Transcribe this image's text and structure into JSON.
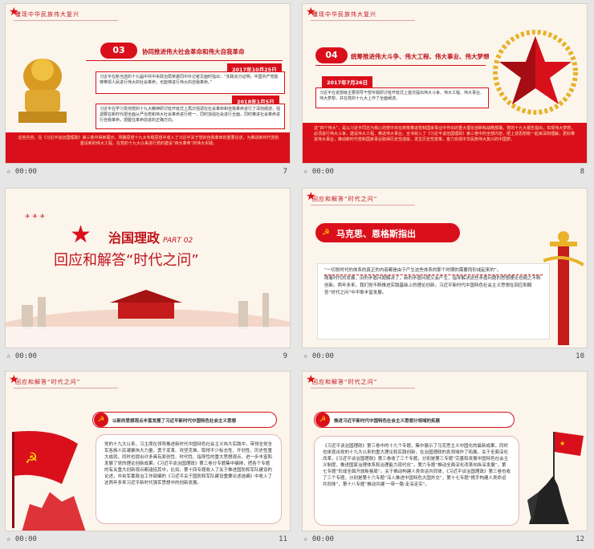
{
  "slides": [
    {
      "number": "7",
      "time": "00:00",
      "header": "覆现中华民族伟大复兴",
      "tag": "03",
      "title": "协同推进伟大社会革命和伟大自我革命",
      "date1": "2017年10月25日",
      "text1": "习近平在新当选的十九届中共中央政治局常委同中外记者见面时指出：“实践充分证明，中国共产党能够带领人民进行伟大的社会革命，也能够进行伟大的自我革命。”",
      "date2": "2018年1月5日",
      "text2": "习近平在学习贯彻党的十九大精神研讨班开班式上再次强调在社会革命和自我革命进行了深刻阐述，强调要在新时代把全面从严治党和伟大社会革命进行统一，同时加强社会进行全面，同时推进社会革命进行自我革命，把握住革命前进的正确方向。",
      "footer": "这些内容，在《习近平谈治国理政》第三卷中得到展示，明确思想十九大专题思想中收入了习近平关于党的自我革命的重要论述，为推进新时代党的建设新的伟大工程，在党的十九大以来进行党的建设“四大革命”的伟大实践。"
    },
    {
      "number": "8",
      "time": "00:00",
      "header": "覆现中华民族伟大复兴",
      "tag": "04",
      "title": "统筹推进伟大斗争、伟大工程、伟大事业、伟大梦想",
      "date": "2017年7月26日",
      "text": "习近平在省部级主要领导干部专题研讨班开班式上首次提出伟大斗争、伟大工程、伟大事业、伟大梦想，并在党的十九大上作了全面阐述。",
      "footer": "这“四个伟大”，是以习近平同志为核心的党中央在统筹推进党和国家事业中作出的重大理论创新和战略部署。党的十九大报告指出，实现伟大梦想，必须进行伟大斗争、建设伟大工程、推进伟大事业。全书收入了《习近平谈治国理政》第三卷中的全部内容，把上述思想统一起来深刻理解，更好推进伟大事业，推动新时代党和国家事业取得历史性成就、发生历史性变革，奋力实现中华民族伟大复兴的中国梦。"
    },
    {
      "number": "9",
      "time": "00:00",
      "title": "治国理政",
      "part": "PART 02",
      "subtitle": "回应和解答“时代之问”"
    },
    {
      "number": "10",
      "time": "00:00",
      "header": "回应和解答“时代之问”",
      "banner": "马克思、恩格斯指出",
      "quote_lead": "“一切划时代的体系的真正的内容都是由于产生这些体系的那个时期的需要而形成起来的”。",
      "quote_body": "随着时代的发展，旧的矛盾问题解决了，新的矛盾问题又会产生，指导解决这些矛盾问题的思想理论也随之不断创新。两年多来，我们党不断推进实践基础上的理论创新，习近平新时代中国特色社会主义思想在回应和解答“时代之问”中不断丰富发展。"
    },
    {
      "number": "11",
      "time": "00:00",
      "header": "回应和解答“时代之问”",
      "pill": "以新的思想观点丰富发展了习近平新时代中国特色社会主义思想",
      "text": "党的十九大以来，习主席在领导推进新时代中国特色社会主义伟大实践中，带领全党全军各族人民凝聚伟大力量，勇于变革、攻坚克难，取得不少标志性、开创性、历史性重大成就，同时也提出许多具有原创性、时代性、指导性的重大思想观点，进一步丰富和发展了党的理论创新成果。《习近平谈治国理政》第三卷分专题集中编排，把各个专题的有关重大创新观点都涵括其中，比如，第十四专题收入了关于推进国防和军队建设的论述，中央军委政治工作部编的《习近平关于国防和军队建设重要论述选编》中收入了这两年多来习近平新时代强军思想中的创新发展。"
    },
    {
      "number": "12",
      "time": "00:00",
      "header": "回应和解答“时代之问”",
      "pill": "推进习近平新时代中国特色社会主义思想分领域的拓展",
      "text": "《习近平谈治国理政》第三卷中的十九个专题，集中展示了马克思主义中国化的最新成果，同时也体现出党的十九大以来的重大理论和实践创新，在治国理政的各领域作了拓展。关于全面深化改革，《习近平谈治国理政》第三卷收了三个专题，分别是第三专题“完善和发展中国特色社会主义制度，推进国家治理体系和治理能力现代化”，第六专题“推动全面深化改革向纵深发展”，第七专题“形成全面开放新格局”。关于推动构建人类命运共同体，《习近平谈治国理政》第三卷也收了三个专题，分别是第十六专题“深入推进中国特色大国外交”，第十七专题“携手构建人类命运共同体”，第十八专题“推动共建‘一带一路’走深走实”。"
    }
  ],
  "colors": {
    "red": "#d9101b",
    "gold": "#e8b22a",
    "paper": "#fbf5ec"
  }
}
